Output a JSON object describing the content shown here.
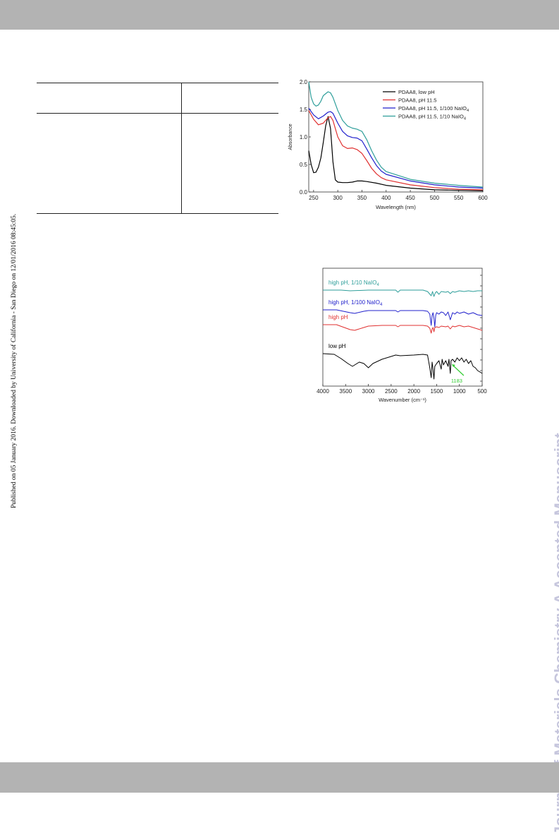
{
  "page": {
    "side_note": "Published on 05 January 2016. Downloaded by University of California - San Diego on 12/01/2016 08:45:05.",
    "watermark": "Journal of Materials Chemistry A Accepted Manuscript",
    "colors": {
      "band": "#b3b3b3",
      "watermark": "#c6c6dd"
    }
  },
  "chart_data": [
    {
      "type": "line",
      "xlabel": "Wavelength (nm)",
      "ylabel": "Absorbance",
      "xlim": [
        240,
        600
      ],
      "ylim": [
        0,
        2.0
      ],
      "xticks": [
        250,
        300,
        350,
        400,
        450,
        500,
        550,
        600
      ],
      "yticks": [
        0.0,
        0.5,
        1.0,
        1.5,
        2.0
      ],
      "xtick_labels": [
        "250",
        "300",
        "350",
        "400",
        "450",
        "500",
        "550",
        "600"
      ],
      "ytick_labels": [
        "0.0",
        "0.5",
        "1.0",
        "1.5",
        "2.0"
      ],
      "legend_position": "top-right",
      "series": [
        {
          "name": "PDAA8, low pH",
          "color": "#000000",
          "x": [
            240,
            245,
            250,
            255,
            260,
            265,
            270,
            275,
            280,
            285,
            290,
            295,
            300,
            310,
            320,
            330,
            340,
            350,
            360,
            380,
            400,
            450,
            500,
            550,
            600
          ],
          "y": [
            0.75,
            0.5,
            0.35,
            0.36,
            0.45,
            0.62,
            0.9,
            1.2,
            1.37,
            1.15,
            0.55,
            0.22,
            0.18,
            0.17,
            0.17,
            0.18,
            0.2,
            0.2,
            0.19,
            0.16,
            0.12,
            0.07,
            0.04,
            0.03,
            0.02
          ]
        },
        {
          "name": "PDAA8, pH 11.5",
          "color": "#e03030",
          "x": [
            240,
            250,
            260,
            270,
            280,
            285,
            290,
            300,
            310,
            320,
            330,
            340,
            350,
            360,
            370,
            380,
            390,
            400,
            450,
            500,
            550,
            600
          ],
          "y": [
            1.48,
            1.32,
            1.22,
            1.25,
            1.35,
            1.37,
            1.3,
            1.0,
            0.84,
            0.79,
            0.8,
            0.77,
            0.7,
            0.57,
            0.43,
            0.33,
            0.26,
            0.22,
            0.13,
            0.08,
            0.05,
            0.04
          ]
        },
        {
          "name": "PDAA8, pH 11.5, 1/100 NaIO4",
          "color": "#2020cc",
          "x": [
            240,
            250,
            260,
            270,
            280,
            285,
            290,
            300,
            310,
            320,
            330,
            340,
            350,
            360,
            370,
            380,
            390,
            400,
            450,
            500,
            550,
            600
          ],
          "y": [
            1.52,
            1.4,
            1.33,
            1.38,
            1.45,
            1.46,
            1.43,
            1.25,
            1.1,
            1.02,
            0.99,
            0.98,
            0.93,
            0.78,
            0.62,
            0.48,
            0.38,
            0.32,
            0.2,
            0.13,
            0.09,
            0.07
          ]
        },
        {
          "name": "PDAA8, pH 11.5, 1/10 NaIO4",
          "color": "#2e9e9a",
          "x": [
            240,
            245,
            250,
            255,
            260,
            265,
            270,
            280,
            285,
            290,
            300,
            310,
            320,
            330,
            340,
            350,
            360,
            370,
            380,
            390,
            400,
            450,
            500,
            550,
            600
          ],
          "y": [
            2.0,
            1.72,
            1.6,
            1.56,
            1.58,
            1.65,
            1.75,
            1.82,
            1.8,
            1.72,
            1.48,
            1.3,
            1.2,
            1.16,
            1.14,
            1.1,
            0.95,
            0.75,
            0.58,
            0.45,
            0.37,
            0.23,
            0.16,
            0.12,
            0.09
          ]
        }
      ]
    },
    {
      "type": "line",
      "xlabel": "Wavenumber (cm⁻¹)",
      "ylabel": "",
      "xlim": [
        4000,
        500
      ],
      "xticks": [
        4000,
        3500,
        3000,
        2500,
        2000,
        1500,
        1000,
        500
      ],
      "xtick_labels": [
        "4000",
        "3500",
        "3000",
        "2500",
        "2000",
        "1500",
        "1000",
        "500"
      ],
      "annotation": {
        "text": "1183",
        "x": 1183,
        "color": "#33cc33"
      },
      "series": [
        {
          "name": "high pH, 1/10 NaIO4",
          "color": "#2e9e9a",
          "baseline": 90,
          "x": [
            4000,
            3600,
            3400,
            3000,
            2400,
            2350,
            2300,
            1800,
            1700,
            1620,
            1590,
            1560,
            1530,
            1500,
            1450,
            1400,
            1300,
            1250,
            1200,
            1150,
            1100,
            1000,
            900,
            800,
            700,
            600,
            500
          ],
          "y": [
            0,
            0,
            -1,
            0,
            0,
            -3,
            0,
            0,
            -2,
            -8,
            -2,
            -9,
            -4,
            -2,
            -6,
            -2,
            -3,
            -2,
            -5,
            -2,
            -3,
            -1,
            -2,
            -1,
            -2,
            -1,
            -1
          ]
        },
        {
          "name": "high pH, 1/100 NaIO4",
          "color": "#2020cc",
          "baseline": 62,
          "x": [
            4000,
            3700,
            3400,
            3300,
            3100,
            3000,
            2700,
            2400,
            2350,
            2300,
            1800,
            1700,
            1650,
            1620,
            1600,
            1580,
            1560,
            1540,
            1520,
            1500,
            1450,
            1400,
            1350,
            1300,
            1250,
            1200,
            1150,
            1100,
            1050,
            1000,
            900,
            800,
            700,
            600,
            500
          ],
          "y": [
            0,
            0,
            -4,
            -5,
            -2,
            -1,
            -1,
            -1,
            -3,
            -1,
            -1,
            -2,
            -6,
            -22,
            -8,
            -4,
            -12,
            -24,
            -8,
            -4,
            -6,
            -3,
            -4,
            -8,
            -3,
            -14,
            -4,
            -6,
            -3,
            -5,
            -3,
            -6,
            -4,
            -7,
            -8
          ]
        },
        {
          "name": "high pH",
          "color": "#e03030",
          "baseline": 41,
          "x": [
            4000,
            3700,
            3400,
            3300,
            3100,
            3000,
            2700,
            2400,
            2350,
            2300,
            1800,
            1700,
            1650,
            1620,
            1600,
            1580,
            1560,
            1540,
            1500,
            1450,
            1400,
            1300,
            1250,
            1200,
            1150,
            1100,
            1000,
            900,
            800,
            700,
            600,
            500
          ],
          "y": [
            0,
            0,
            -7,
            -8,
            -4,
            -2,
            -1,
            -1,
            -3,
            -1,
            -1,
            -2,
            -5,
            -12,
            -6,
            -4,
            -10,
            -4,
            -3,
            -4,
            -2,
            -3,
            -2,
            -6,
            -2,
            -3,
            -1,
            -3,
            -2,
            -4,
            -6,
            -8
          ]
        },
        {
          "name": "low pH",
          "color": "#000000",
          "baseline": 0,
          "x": [
            4000,
            3750,
            3600,
            3450,
            3350,
            3200,
            3100,
            3000,
            2900,
            2700,
            2500,
            2400,
            2300,
            2000,
            1800,
            1700,
            1650,
            1620,
            1600,
            1580,
            1560,
            1540,
            1500,
            1450,
            1400,
            1380,
            1350,
            1300,
            1250,
            1230,
            1200,
            1183,
            1150,
            1100,
            1050,
            1000,
            950,
            900,
            850,
            800,
            750,
            700,
            650,
            600,
            550,
            500
          ],
          "y": [
            0,
            -1,
            -7,
            -14,
            -18,
            -12,
            -14,
            -20,
            -14,
            -8,
            -4,
            -2,
            -3,
            -2,
            -1,
            -2,
            -20,
            -34,
            -12,
            -22,
            -36,
            -18,
            -14,
            -10,
            -22,
            -8,
            -16,
            -10,
            -18,
            -8,
            -28,
            -10,
            -8,
            -12,
            -6,
            -10,
            -6,
            -12,
            -8,
            -14,
            -10,
            -18,
            -20,
            -24,
            -26,
            -28
          ]
        }
      ]
    }
  ]
}
